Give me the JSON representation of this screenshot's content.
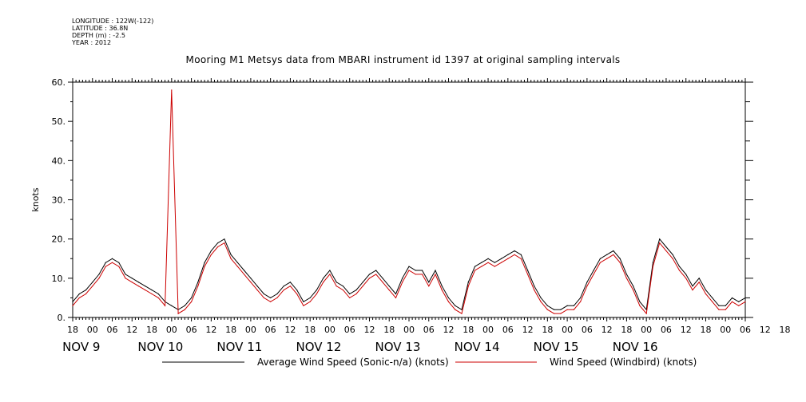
{
  "meta": {
    "longitude": "LONGITUDE : 122W(-122)",
    "latitude": "LATITUDE : 36.8N",
    "depth": "DEPTH (m) : -2.5",
    "year": "YEAR : 2012"
  },
  "chart_data": {
    "type": "line",
    "title": "Mooring M1 Metsys data from MBARI instrument id 1397 at original sampling intervals",
    "ylabel": "knots",
    "xlabel": "",
    "ylim": [
      0,
      60
    ],
    "yticks": [
      "0.",
      "10.",
      "20.",
      "30.",
      "40.",
      "50.",
      "60."
    ],
    "xlim_hours": [
      0,
      204
    ],
    "hour_tick_labels": [
      "18",
      "00",
      "06",
      "12",
      "18",
      "00",
      "06",
      "12",
      "18",
      "00",
      "06",
      "12",
      "18",
      "00",
      "06",
      "12",
      "18",
      "00",
      "06",
      "12",
      "18",
      "00",
      "06",
      "12",
      "18",
      "00",
      "06",
      "12",
      "18",
      "00",
      "06",
      "12",
      "18",
      "00",
      "06",
      "12",
      "18"
    ],
    "date_labels": [
      "NOV  9",
      "NOV 10",
      "NOV 11",
      "NOV 12",
      "NOV 13",
      "NOV 14",
      "NOV 15",
      "NOV 16"
    ],
    "x_note": "x values are hours from 2012-11-08 18:00",
    "series": [
      {
        "name": "Average Wind Speed (Sonic-n/a) (knots)",
        "color": "#000000",
        "x": [
          0,
          2,
          4,
          6,
          8,
          10,
          12,
          14,
          16,
          18,
          20,
          22,
          24,
          26,
          28,
          30,
          32,
          34,
          36,
          38,
          40,
          42,
          44,
          46,
          48,
          50,
          52,
          54,
          56,
          58,
          60,
          62,
          64,
          66,
          68,
          70,
          72,
          74,
          76,
          78,
          80,
          82,
          84,
          86,
          88,
          90,
          92,
          94,
          96,
          98,
          100,
          102,
          104,
          106,
          108,
          110,
          112,
          114,
          116,
          118,
          120,
          122,
          124,
          126,
          128,
          130,
          132,
          134,
          136,
          138,
          140,
          142,
          144,
          146,
          148,
          150,
          152,
          154,
          156,
          158,
          160,
          162,
          164,
          166,
          168,
          170,
          172,
          174,
          176,
          178,
          180,
          182,
          184,
          186,
          188,
          190,
          192,
          194,
          196,
          198,
          200,
          202,
          204
        ],
        "values": [
          4,
          6,
          7,
          9,
          11,
          14,
          15,
          14,
          11,
          10,
          9,
          8,
          7,
          6,
          4,
          3,
          2,
          3,
          5,
          9,
          14,
          17,
          19,
          20,
          16,
          14,
          12,
          10,
          8,
          6,
          5,
          6,
          8,
          9,
          7,
          4,
          5,
          7,
          10,
          12,
          9,
          8,
          6,
          7,
          9,
          11,
          12,
          10,
          8,
          6,
          10,
          13,
          12,
          12,
          9,
          12,
          8,
          5,
          3,
          2,
          9,
          13,
          14,
          15,
          14,
          15,
          16,
          17,
          16,
          12,
          8,
          5,
          3,
          2,
          2,
          3,
          3,
          5,
          9,
          12,
          15,
          16,
          17,
          15,
          11,
          8,
          4,
          2,
          14,
          20,
          18,
          16,
          13,
          11,
          8,
          10,
          7,
          5,
          3,
          3,
          5,
          4,
          5
        ]
      },
      {
        "name": "Wind Speed (Windbird) (knots)",
        "color": "#cc0000",
        "x": [
          0,
          2,
          4,
          6,
          8,
          10,
          12,
          14,
          16,
          18,
          20,
          22,
          24,
          26,
          28,
          30,
          32,
          34,
          36,
          38,
          40,
          42,
          44,
          46,
          48,
          50,
          52,
          54,
          56,
          58,
          60,
          62,
          64,
          66,
          68,
          70,
          72,
          74,
          76,
          78,
          80,
          82,
          84,
          86,
          88,
          90,
          92,
          94,
          96,
          98,
          100,
          102,
          104,
          106,
          108,
          110,
          112,
          114,
          116,
          118,
          120,
          122,
          124,
          126,
          128,
          130,
          132,
          134,
          136,
          138,
          140,
          142,
          144,
          146,
          148,
          150,
          152,
          154,
          156,
          158,
          160,
          162,
          164,
          166,
          168,
          170,
          172,
          174,
          176,
          178,
          180,
          182,
          184,
          186,
          188,
          190,
          192,
          194,
          196,
          198,
          200,
          202,
          204
        ],
        "values": [
          3,
          5,
          6,
          8,
          10,
          13,
          14,
          13,
          10,
          9,
          8,
          7,
          6,
          5,
          3,
          58,
          1,
          2,
          4,
          8,
          13,
          16,
          18,
          19,
          15,
          13,
          11,
          9,
          7,
          5,
          4,
          5,
          7,
          8,
          6,
          3,
          4,
          6,
          9,
          11,
          8,
          7,
          5,
          6,
          8,
          10,
          11,
          9,
          7,
          5,
          9,
          12,
          11,
          11,
          8,
          11,
          7,
          4,
          2,
          1,
          8,
          12,
          13,
          14,
          13,
          14,
          15,
          16,
          15,
          11,
          7,
          4,
          2,
          1,
          1,
          2,
          2,
          4,
          8,
          11,
          14,
          15,
          16,
          14,
          10,
          7,
          3,
          1,
          13,
          19,
          17,
          15,
          12,
          10,
          7,
          9,
          6,
          4,
          2,
          2,
          4,
          3,
          4
        ]
      }
    ]
  }
}
